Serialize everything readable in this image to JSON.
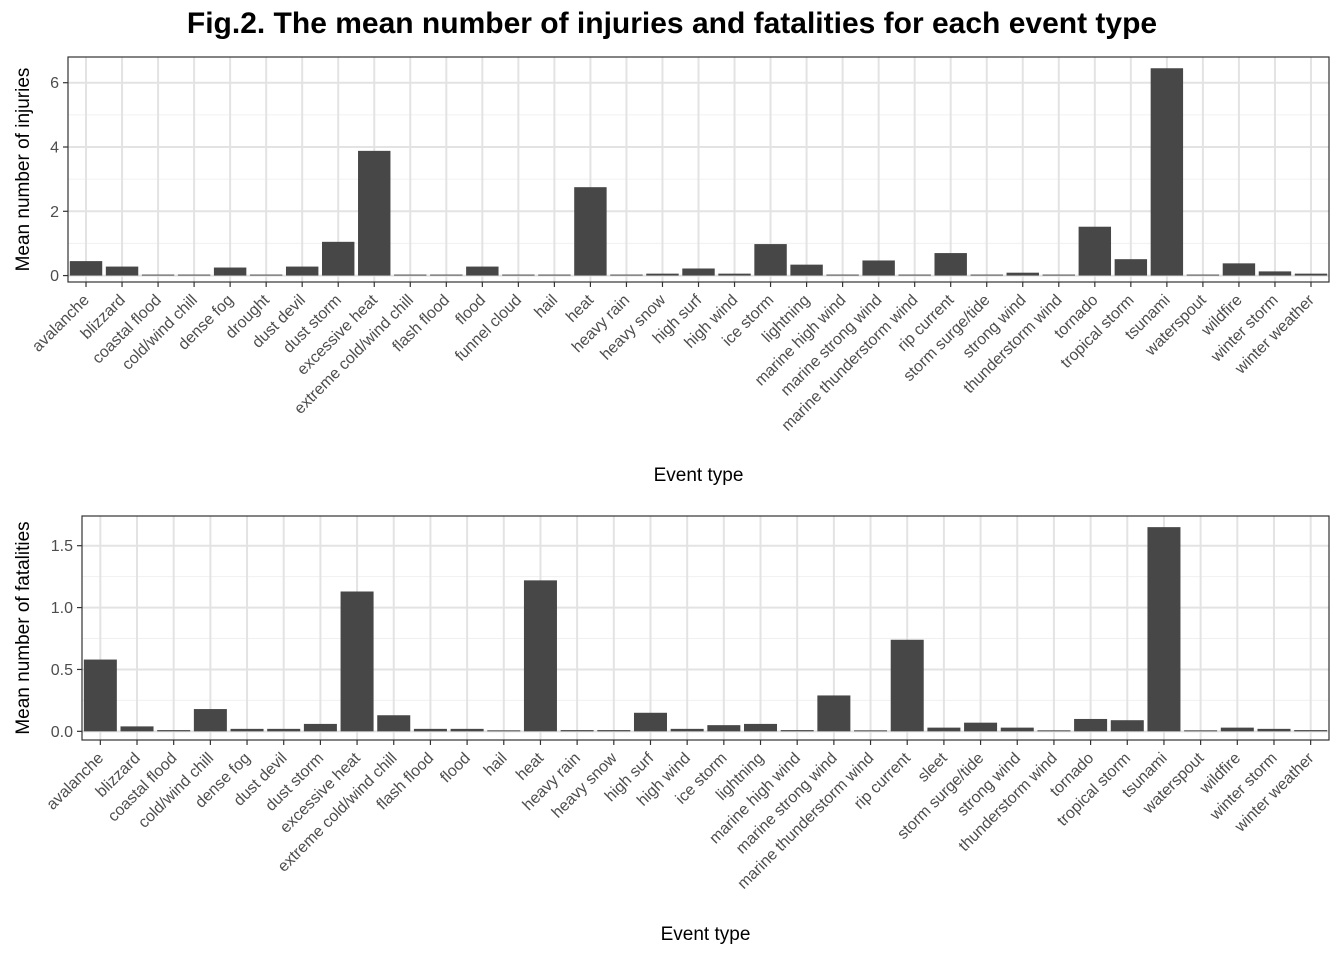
{
  "figure_title": "Fig.2. The mean number of injuries and fatalities for each event type",
  "chart_data": [
    {
      "type": "bar",
      "xlabel": "Event type",
      "ylabel": "Mean number of injuries",
      "ylim": [
        -0.2,
        6.8
      ],
      "yticks": [
        0,
        2,
        4,
        6
      ],
      "grid": true,
      "bar_color": "#474747",
      "categories": [
        "avalanche",
        "blizzard",
        "coastal flood",
        "cold/wind chill",
        "dense fog",
        "drought",
        "dust devil",
        "dust storm",
        "excessive heat",
        "extreme cold/wind chill",
        "flash flood",
        "flood",
        "funnel cloud",
        "hail",
        "heat",
        "heavy rain",
        "heavy snow",
        "high surf",
        "high wind",
        "ice storm",
        "lightning",
        "marine high wind",
        "marine strong wind",
        "marine thunderstorm wind",
        "rip current",
        "storm surge/tide",
        "strong wind",
        "thunderstorm wind",
        "tornado",
        "tropical storm",
        "tsunami",
        "waterspout",
        "wildfire",
        "winter storm",
        "winter weather"
      ],
      "values": [
        0.45,
        0.28,
        0.0,
        0.03,
        0.25,
        0.0,
        0.28,
        1.05,
        3.88,
        0.03,
        0.03,
        0.28,
        0.0,
        0.01,
        2.75,
        0.02,
        0.06,
        0.22,
        0.06,
        0.98,
        0.34,
        0.0,
        0.47,
        0.0,
        0.7,
        0.03,
        0.09,
        0.03,
        1.52,
        0.51,
        6.45,
        0.01,
        0.38,
        0.13,
        0.06
      ]
    },
    {
      "type": "bar",
      "xlabel": "Event type",
      "ylabel": "Mean number of fatalities",
      "ylim": [
        -0.07,
        1.74
      ],
      "yticks": [
        0.0,
        0.5,
        1.0,
        1.5
      ],
      "ytick_labels": [
        "0.0",
        "0.5",
        "1.0",
        "1.5"
      ],
      "grid": true,
      "bar_color": "#474747",
      "categories": [
        "avalanche",
        "blizzard",
        "coastal flood",
        "cold/wind chill",
        "dense fog",
        "dust devil",
        "dust storm",
        "excessive heat",
        "extreme cold/wind chill",
        "flash flood",
        "flood",
        "hail",
        "heat",
        "heavy rain",
        "heavy snow",
        "high surf",
        "high wind",
        "ice storm",
        "lightning",
        "marine high wind",
        "marine strong wind",
        "marine thunderstorm wind",
        "rip current",
        "sleet",
        "storm surge/tide",
        "strong wind",
        "thunderstorm wind",
        "tornado",
        "tropical storm",
        "tsunami",
        "waterspout",
        "wildfire",
        "winter storm",
        "winter weather"
      ],
      "values": [
        0.58,
        0.04,
        0.01,
        0.18,
        0.02,
        0.02,
        0.06,
        1.13,
        0.13,
        0.02,
        0.02,
        0.0,
        1.22,
        0.01,
        0.01,
        0.15,
        0.02,
        0.05,
        0.06,
        0.01,
        0.29,
        0.0,
        0.74,
        0.03,
        0.07,
        0.03,
        0.0,
        0.1,
        0.09,
        1.65,
        0.0,
        0.03,
        0.02,
        0.01
      ]
    }
  ]
}
